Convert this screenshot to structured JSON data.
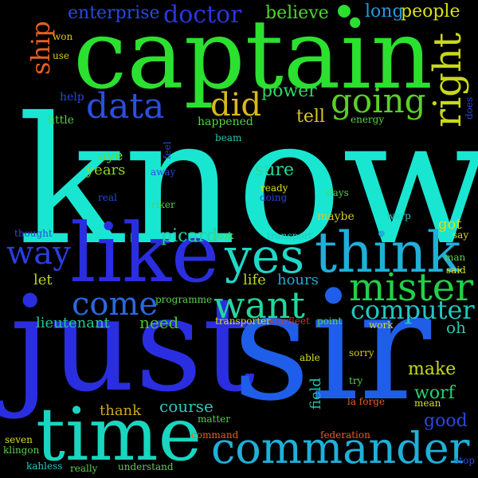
{
  "words": [
    {
      "text": "know",
      "color": "#19e6d0"
    },
    {
      "text": "captain",
      "color": "#2be02f"
    },
    {
      "text": "just",
      "color": "#2a2ee0"
    },
    {
      "text": "sir",
      "color": "#1f5ee8"
    },
    {
      "text": "like",
      "color": "#2a2ee0"
    },
    {
      "text": "time",
      "color": "#19d6c0"
    },
    {
      "text": "think",
      "color": "#1fb0d8"
    },
    {
      "text": "yes",
      "color": "#1fd8c8"
    },
    {
      "text": "commander",
      "color": "#1fb0d8"
    },
    {
      "text": "mister",
      "color": "#24cf4a"
    },
    {
      "text": "want",
      "color": "#22d8a0"
    },
    {
      "text": "data",
      "color": "#2a50e0"
    },
    {
      "text": "going",
      "color": "#5ad02a"
    },
    {
      "text": "right",
      "color": "#c8d81c"
    },
    {
      "text": "come",
      "color": "#2a68e0"
    },
    {
      "text": "way",
      "color": "#2a3ee0"
    },
    {
      "text": "did",
      "color": "#d8b81c"
    },
    {
      "text": "computer",
      "color": "#20c8c0"
    },
    {
      "text": "doctor",
      "color": "#2a36e0"
    },
    {
      "text": "ship",
      "color": "#e86020"
    },
    {
      "text": "enterprise",
      "color": "#2a48e0"
    },
    {
      "text": "believe",
      "color": "#4cd82a"
    },
    {
      "text": "long",
      "color": "#1f9ae0"
    },
    {
      "text": "people",
      "color": "#d8e01c"
    },
    {
      "text": "power",
      "color": "#30d860"
    },
    {
      "text": "tell",
      "color": "#d8c81c"
    },
    {
      "text": "picard",
      "color": "#2ad0a8"
    },
    {
      "text": "sure",
      "color": "#2ad8a0"
    },
    {
      "text": "years",
      "color": "#90d81c"
    },
    {
      "text": "aye",
      "color": "#6ad82a"
    },
    {
      "text": "worf",
      "color": "#2ad070"
    },
    {
      "text": "make",
      "color": "#c8d81c"
    },
    {
      "text": "good",
      "color": "#2a48e0"
    },
    {
      "text": "course",
      "color": "#28c8c0"
    },
    {
      "text": "need",
      "color": "#4cc82a"
    },
    {
      "text": "lieutenant",
      "color": "#26c890"
    },
    {
      "text": "thank",
      "color": "#d0a81c"
    },
    {
      "text": "let",
      "color": "#b8d81c"
    },
    {
      "text": "oh",
      "color": "#28c8b0"
    },
    {
      "text": "field",
      "color": "#20c8b0"
    },
    {
      "text": "hours",
      "color": "#28a8d0"
    },
    {
      "text": "life",
      "color": "#b8d81c"
    },
    {
      "text": "got",
      "color": "#d8e01c"
    },
    {
      "text": "happened",
      "color": "#5ad04a"
    },
    {
      "text": "help",
      "color": "#2a48e0"
    },
    {
      "text": "little",
      "color": "#5ad04a"
    },
    {
      "text": "energy",
      "color": "#5ad04a"
    },
    {
      "text": "does",
      "color": "#2a48e0"
    },
    {
      "text": "won",
      "color": "#d8c81c"
    },
    {
      "text": "use",
      "color": "#d8c81c"
    },
    {
      "text": "beam",
      "color": "#28c8b0"
    },
    {
      "text": "feel",
      "color": "#2a48e0"
    },
    {
      "text": "away",
      "color": "#2a48e0"
    },
    {
      "text": "real",
      "color": "#2a48e0"
    },
    {
      "text": "riker",
      "color": "#5ad04a"
    },
    {
      "text": "ready",
      "color": "#d8e01c"
    },
    {
      "text": "doing",
      "color": "#2a48e0"
    },
    {
      "text": "days",
      "color": "#5ad04a"
    },
    {
      "text": "warp",
      "color": "#28c8c0"
    },
    {
      "text": "maybe",
      "color": "#d8c81c"
    },
    {
      "text": "thought",
      "color": "#2a48e0"
    },
    {
      "text": "look",
      "color": "#5ad04a"
    },
    {
      "text": "transport",
      "color": "#28c8c0"
    },
    {
      "text": "say",
      "color": "#d8e01c"
    },
    {
      "text": "man",
      "color": "#5ad04a"
    },
    {
      "text": "said",
      "color": "#d8e01c"
    },
    {
      "text": "programme",
      "color": "#5ad04a"
    },
    {
      "text": "transporter",
      "color": "#d8e01c"
    },
    {
      "text": "starfleet",
      "color": "#e83020"
    },
    {
      "text": "point",
      "color": "#5ad04a"
    },
    {
      "text": "work",
      "color": "#d8e01c"
    },
    {
      "text": "able",
      "color": "#d8e01c"
    },
    {
      "text": "sorry",
      "color": "#d8c81c"
    },
    {
      "text": "try",
      "color": "#5ad04a"
    },
    {
      "text": "mean",
      "color": "#d8e01c"
    },
    {
      "text": "la forge",
      "color": "#e86020"
    },
    {
      "text": "matter",
      "color": "#5ad04a"
    },
    {
      "text": "command",
      "color": "#e86020"
    },
    {
      "text": "federation",
      "color": "#e86020"
    },
    {
      "text": "seven",
      "color": "#d8e01c"
    },
    {
      "text": "klingon",
      "color": "#5ad04a"
    },
    {
      "text": "kahless",
      "color": "#28c8c0"
    },
    {
      "text": "really",
      "color": "#5ad04a"
    },
    {
      "text": "understand",
      "color": "#5ad04a"
    },
    {
      "text": "stop",
      "color": "#2a48e0"
    }
  ]
}
